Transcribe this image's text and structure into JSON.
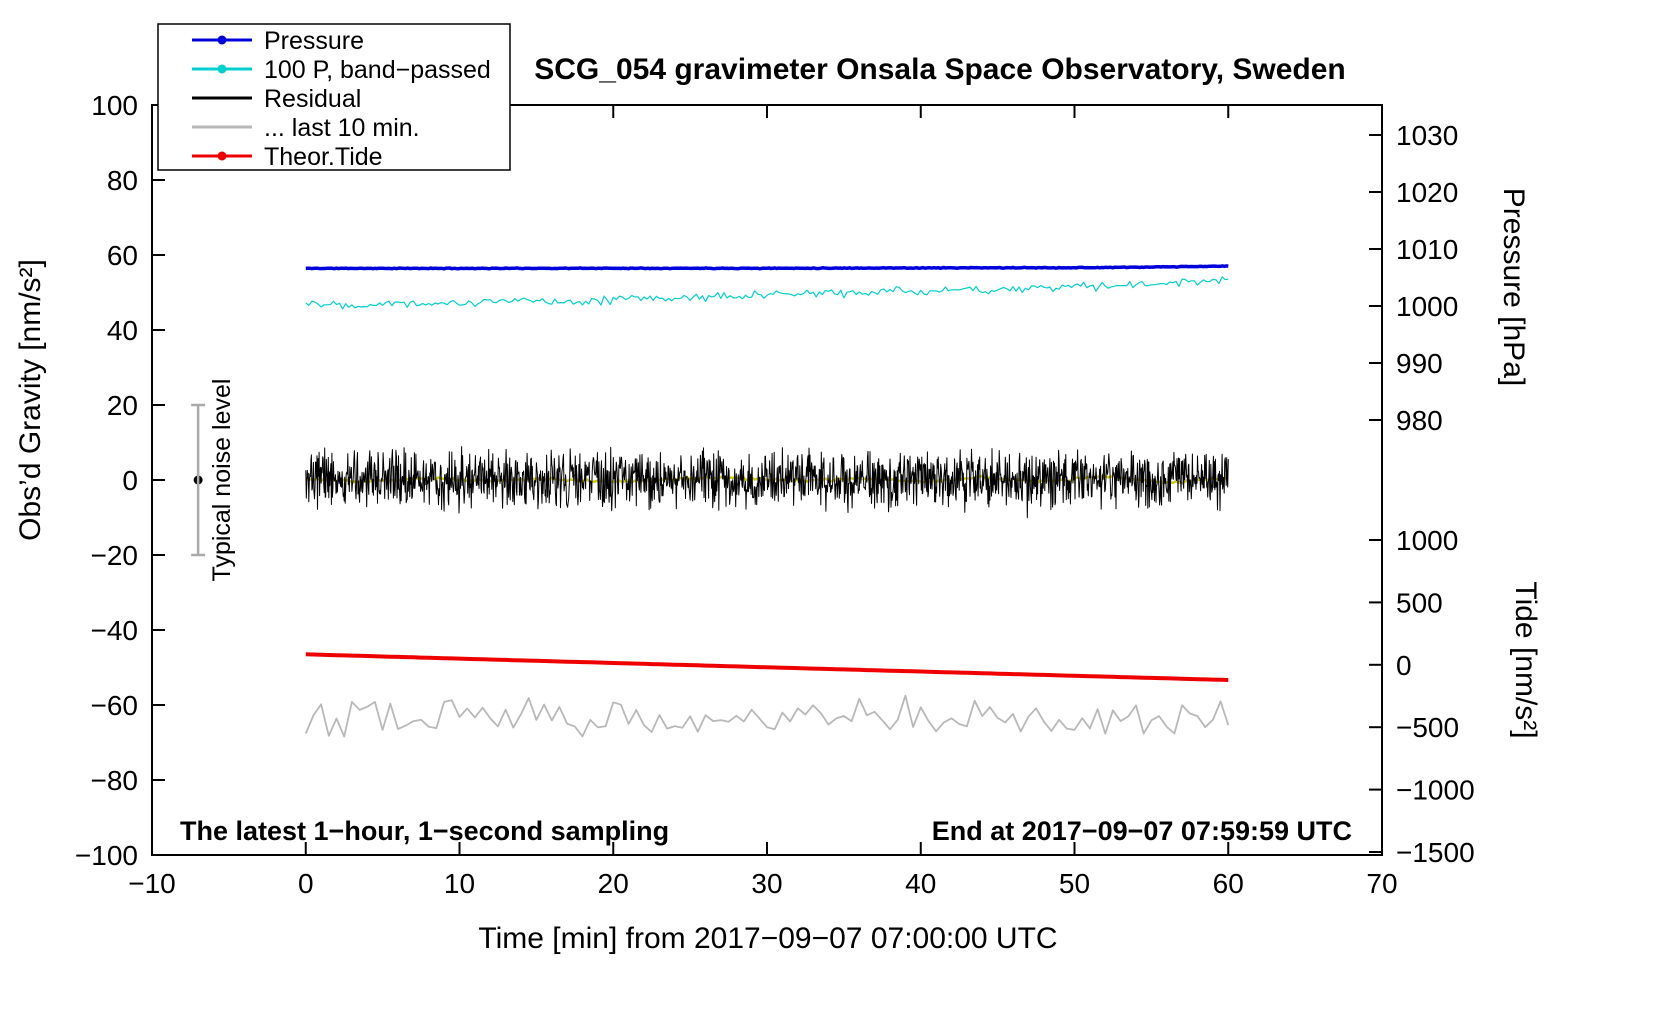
{
  "chart_data": {
    "type": "line",
    "title": "SCG_054 gravimeter Onsala Space Observatory, Sweden",
    "xlabel": "Time [min] from 2017−09−07 07:00:00 UTC",
    "ylabel_left": "Obs’d Gravity [nm/s²]",
    "ylabel_right_pressure": "Pressure [hPa]",
    "ylabel_right_tide": "Tide [nm/s²]",
    "xlim": [
      -10,
      70
    ],
    "ylim_left": [
      -100,
      100
    ],
    "x_ticks": [
      -10,
      0,
      10,
      20,
      30,
      40,
      50,
      60,
      70
    ],
    "y_ticks_left": [
      -100,
      -80,
      -60,
      -40,
      -20,
      0,
      20,
      40,
      60,
      80,
      100
    ],
    "pressure_ticks": [
      1030,
      1020,
      1010,
      1000,
      990,
      980
    ],
    "tide_ticks": [
      1000,
      500,
      0,
      -500,
      -1000,
      -1500
    ],
    "grid": false,
    "legend": {
      "position": "top-left",
      "entries": [
        {
          "label": "Pressure",
          "color": "#0000dd",
          "marker": true
        },
        {
          "label": "100 P, band−passed",
          "color": "#00cfcf",
          "marker": true
        },
        {
          "label": "Residual",
          "color": "#000000",
          "marker": false
        },
        {
          "label": "... last 10 min.",
          "color": "#b8b8b8",
          "marker": false
        },
        {
          "label": "Theor.Tide",
          "color": "#ee0000",
          "marker": true
        }
      ]
    },
    "annotations": {
      "bottom_left": "The latest 1−hour, 1−second sampling",
      "bottom_right": "End at 2017−09−07 07:59:59 UTC",
      "noise_marker": {
        "x_min": -7,
        "value": 0,
        "error": 20,
        "label": "Typical noise level"
      }
    },
    "series": [
      {
        "name": "... last 10 min.",
        "slug": "last-10-min",
        "axis": "gravity",
        "color": "#b8b8b8",
        "width": 1.8,
        "x_range": [
          0,
          60
        ],
        "pts_per_min": 2,
        "seed": 66,
        "noise": 6,
        "keypoints": {
          "x": [
            0,
            60
          ],
          "v": [
            -62.5,
            -63.5
          ]
        }
      },
      {
        "name": "100 P, band-passed",
        "slug": "band-passed",
        "axis": "gravity",
        "color": "#00cfcf",
        "width": 1.2,
        "x_range": [
          0,
          60
        ],
        "pts_per_min": 5,
        "seed": 22,
        "noise": 1.4,
        "keypoints": {
          "x": [
            0,
            3,
            6,
            9,
            12,
            15,
            18,
            21,
            24,
            27,
            30,
            33,
            36,
            39,
            42,
            45,
            48,
            51,
            54,
            57,
            60
          ],
          "v": [
            47.4,
            46.8,
            47.3,
            47.0,
            47.5,
            47.9,
            47.7,
            48.2,
            48.6,
            49.0,
            49.3,
            49.7,
            50.0,
            50.3,
            50.6,
            50.9,
            51.2,
            51.6,
            52.0,
            52.6,
            53.5
          ]
        }
      },
      {
        "name": "Pressure",
        "slug": "pressure",
        "axis": "pressure",
        "color": "#0000dd",
        "width": 3.5,
        "x_range": [
          0,
          60
        ],
        "pts_per_min": 8,
        "seed": 11,
        "noise": 0.08,
        "keypoints": {
          "x": [
            0,
            10,
            20,
            30,
            40,
            50,
            55,
            60
          ],
          "v": [
            1006.6,
            1006.6,
            1006.62,
            1006.62,
            1006.68,
            1006.72,
            1006.82,
            1007.0
          ]
        }
      },
      {
        "name": "Theor.Tide",
        "slug": "theor-tide",
        "axis": "tide",
        "color": "#ee0000",
        "width": 4,
        "x_range": [
          0,
          60
        ],
        "pts_per_min": 2,
        "seed": 55,
        "noise": 0,
        "keypoints": {
          "x": [
            0,
            30,
            60
          ],
          "v": [
            84,
            -20,
            -122
          ]
        }
      },
      {
        "name": "Residual",
        "slug": "residual",
        "axis": "gravity",
        "color": "#000000",
        "width": 1,
        "x_range": [
          0,
          60
        ],
        "pts_per_min": 30,
        "seed": 33,
        "noise": 9,
        "spike_prob": 0.008,
        "spike_amp": 4,
        "keypoints": {
          "x": [
            0,
            60
          ],
          "v": [
            0,
            0
          ]
        }
      },
      {
        "name": "Residual smoothed",
        "slug": "residual-smooth",
        "axis": "gravity",
        "color": "#cccc00",
        "width": 2.5,
        "x_range": [
          0,
          60
        ],
        "pts_per_min": 5,
        "seed": 44,
        "noise": 0.5,
        "keypoints": {
          "x": [
            0,
            4,
            8,
            12,
            16,
            20,
            24,
            28,
            32,
            36,
            40,
            44,
            48,
            52,
            56,
            60
          ],
          "v": [
            0.2,
            -0.4,
            0.5,
            -0.2,
            0.3,
            -0.5,
            0.2,
            0.6,
            -0.3,
            0.4,
            -0.4,
            0.7,
            -0.4,
            1.0,
            -0.7,
            0.5
          ]
        }
      }
    ]
  }
}
